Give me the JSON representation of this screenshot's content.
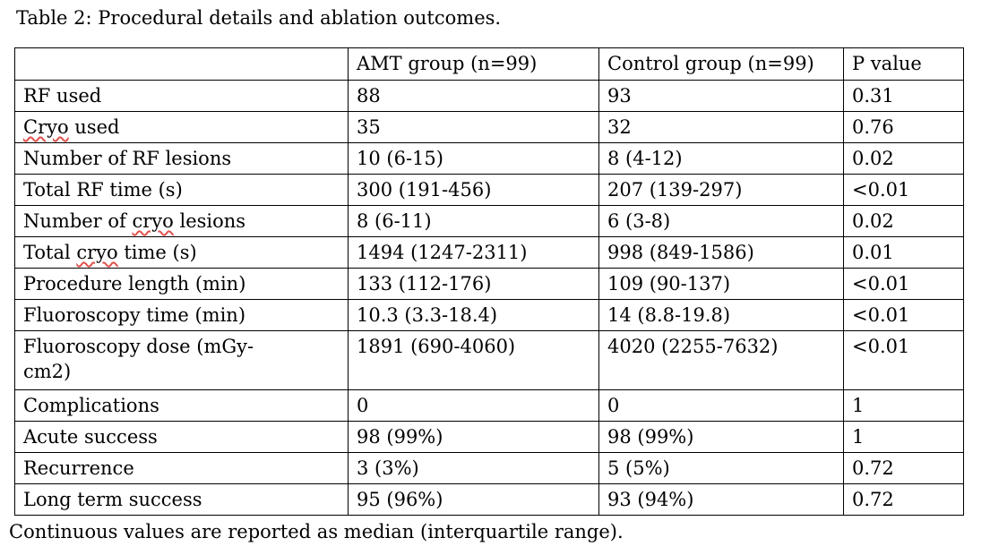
{
  "page": {
    "title": "Table 2: Procedural details and ablation outcomes.",
    "footnote": "Continuous values are reported as median (interquartile range)."
  },
  "table": {
    "headers": [
      "",
      "AMT group (n=99)",
      "Control group (n=99)",
      "P value"
    ],
    "rows": [
      {
        "label": "RF used",
        "amt": "88",
        "control": "93",
        "p": "0.31"
      },
      {
        "label": "Cryo used",
        "misspelled_word": "Cryo",
        "amt": "35",
        "control": "32",
        "p": "0.76"
      },
      {
        "label": "Number of RF lesions",
        "amt": "10 (6-15)",
        "control": "8 (4-12)",
        "p": "0.02"
      },
      {
        "label": "Total RF time (s)",
        "amt": "300 (191-456)",
        "control": "207 (139-297)",
        "p": "<0.01"
      },
      {
        "label": "Number of cryo lesions",
        "misspelled_word": "cryo",
        "amt": "8 (6-11)",
        "control": "6 (3-8)",
        "p": "0.02"
      },
      {
        "label": "Total cryo time (s)",
        "misspelled_word": "cryo",
        "amt": "1494 (1247-2311)",
        "control": "998 (849-1586)",
        "p": "0.01"
      },
      {
        "label": "Procedure length (min)",
        "amt": "133 (112-176)",
        "control": "109 (90-137)",
        "p": "<0.01"
      },
      {
        "label": "Fluoroscopy time (min)",
        "amt": "10.3 (3.3-18.4)",
        "control": "14 (8.8-19.8)",
        "p": "<0.01"
      },
      {
        "label": "Fluoroscopy dose (mGy-cm2)",
        "amt": "1891 (690-4060)",
        "control": "4020 (2255-7632)",
        "p": "<0.01"
      },
      {
        "label": "Complications",
        "amt": "0",
        "control": "0",
        "p": "1"
      },
      {
        "label": "Acute success",
        "amt": "98 (99%)",
        "control": "98 (99%)",
        "p": "1"
      },
      {
        "label": "Recurrence",
        "amt": "3 (3%)",
        "control": "5 (5%)",
        "p": "0.72"
      },
      {
        "label": "Long term success",
        "amt": "95 (96%)",
        "control": "93 (94%)",
        "p": "0.72"
      }
    ]
  },
  "colors": {
    "text": "#000000",
    "border": "#000000",
    "background": "#ffffff",
    "spellcheck_underline": "#e0524d"
  }
}
